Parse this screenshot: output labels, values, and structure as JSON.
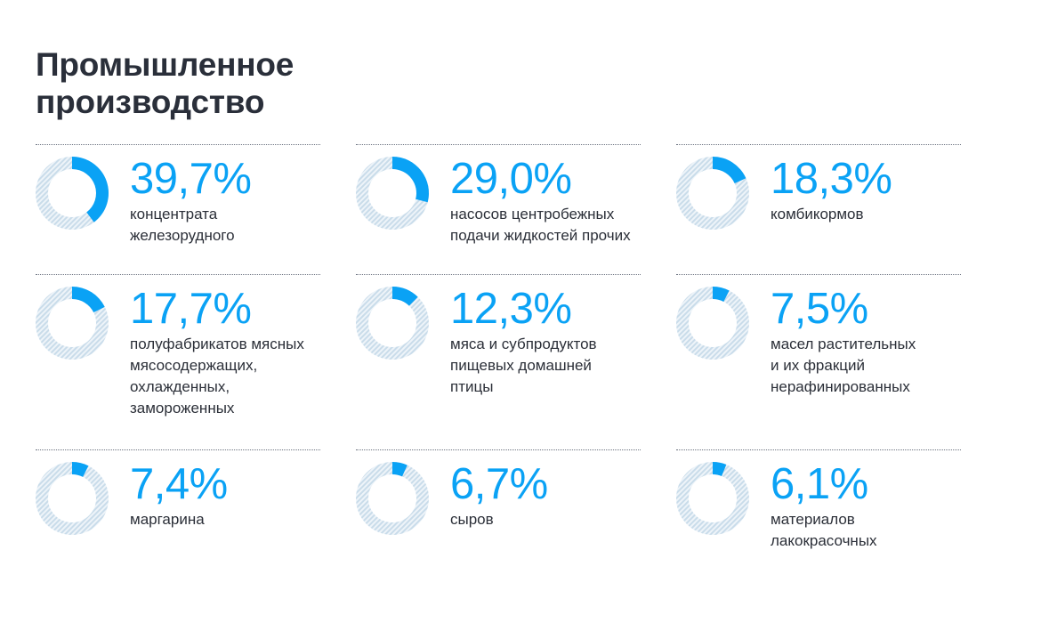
{
  "title_lines": [
    "Промышленное",
    "производство"
  ],
  "colors": {
    "accent": "#0aa2f5",
    "track": "#c9dcea",
    "text": "#2b2f38",
    "rule": "#6b7280"
  },
  "chart_data": {
    "type": "donut",
    "items": [
      {
        "value": 39.7,
        "value_label": "39,7%",
        "label_lines": [
          "концентрата",
          "железорудного"
        ]
      },
      {
        "value": 29.0,
        "value_label": "29,0%",
        "label_lines": [
          "насосов центробежных",
          "подачи жидкостей прочих"
        ]
      },
      {
        "value": 18.3,
        "value_label": "18,3%",
        "label_lines": [
          "комбикормов"
        ]
      },
      {
        "value": 17.7,
        "value_label": "17,7%",
        "label_lines": [
          "полуфабрикатов мясных",
          "мясосодержащих,",
          "охлажденных,",
          "замороженных"
        ]
      },
      {
        "value": 12.3,
        "value_label": "12,3%",
        "label_lines": [
          "мяса и субпродуктов",
          "пищевых домашней",
          "птицы"
        ]
      },
      {
        "value": 7.5,
        "value_label": "7,5%",
        "label_lines": [
          "масел растительных",
          "и их фракций",
          "нерафинированных"
        ]
      },
      {
        "value": 7.4,
        "value_label": "7,4%",
        "label_lines": [
          "маргарина"
        ]
      },
      {
        "value": 6.7,
        "value_label": "6,7%",
        "label_lines": [
          "сыров"
        ]
      },
      {
        "value": 6.1,
        "value_label": "6,1%",
        "label_lines": [
          "материалов",
          "лакокрасочных"
        ]
      }
    ]
  }
}
